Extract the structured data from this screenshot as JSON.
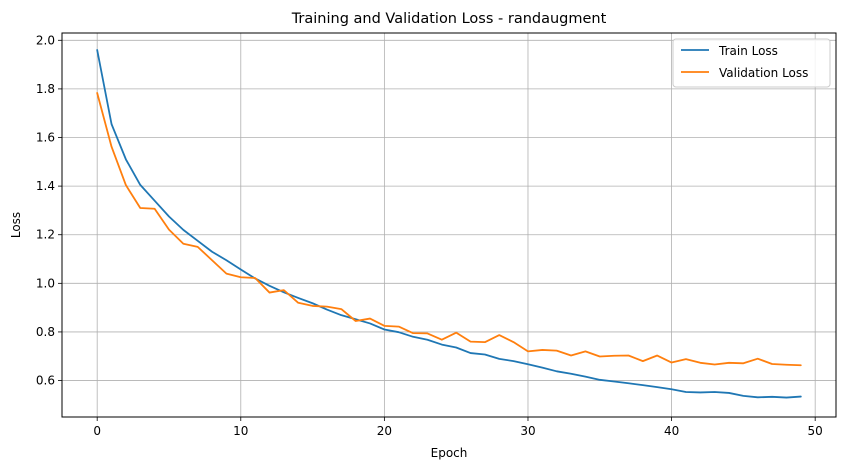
{
  "chart_data": {
    "type": "line",
    "title": "Training and Validation Loss - randaugment",
    "xlabel": "Epoch",
    "ylabel": "Loss",
    "xlim": [
      -2.45,
      51.45
    ],
    "ylim": [
      0.45,
      2.03
    ],
    "xticks": [
      0,
      10,
      20,
      30,
      40,
      50
    ],
    "yticks": [
      0.6,
      0.8,
      1.0,
      1.2,
      1.4,
      1.6,
      1.8,
      2.0
    ],
    "xtick_labels": [
      "0",
      "10",
      "20",
      "30",
      "40",
      "50"
    ],
    "ytick_labels": [
      "0.6",
      "0.8",
      "1.0",
      "1.2",
      "1.4",
      "1.6",
      "1.8",
      "2.0"
    ],
    "grid": true,
    "legend_position": "top-right",
    "x": [
      0,
      1,
      2,
      3,
      4,
      5,
      6,
      7,
      8,
      9,
      10,
      11,
      12,
      13,
      14,
      15,
      16,
      17,
      18,
      19,
      20,
      21,
      22,
      23,
      24,
      25,
      26,
      27,
      28,
      29,
      30,
      31,
      32,
      33,
      34,
      35,
      36,
      37,
      38,
      39,
      40,
      41,
      42,
      43,
      44,
      45,
      46,
      47,
      48,
      49
    ],
    "series": [
      {
        "name": "Train Loss",
        "color": "#1f77b4",
        "values": [
          1.96,
          1.655,
          1.51,
          1.405,
          1.34,
          1.275,
          1.22,
          1.175,
          1.13,
          1.095,
          1.057,
          1.02,
          0.99,
          0.963,
          0.94,
          0.918,
          0.892,
          0.869,
          0.852,
          0.835,
          0.81,
          0.799,
          0.78,
          0.768,
          0.748,
          0.736,
          0.713,
          0.707,
          0.689,
          0.68,
          0.667,
          0.653,
          0.638,
          0.628,
          0.616,
          0.603,
          0.596,
          0.589,
          0.581,
          0.573,
          0.564,
          0.553,
          0.551,
          0.553,
          0.549,
          0.537,
          0.531,
          0.533,
          0.53,
          0.534
        ]
      },
      {
        "name": "Validation Loss",
        "color": "#ff7f0e",
        "values": [
          1.783,
          1.562,
          1.404,
          1.31,
          1.307,
          1.221,
          1.163,
          1.15,
          1.095,
          1.04,
          1.025,
          1.022,
          0.962,
          0.972,
          0.92,
          0.907,
          0.904,
          0.894,
          0.845,
          0.855,
          0.825,
          0.822,
          0.795,
          0.794,
          0.768,
          0.797,
          0.76,
          0.758,
          0.787,
          0.758,
          0.72,
          0.726,
          0.723,
          0.703,
          0.72,
          0.699,
          0.702,
          0.703,
          0.68,
          0.703,
          0.674,
          0.688,
          0.673,
          0.666,
          0.673,
          0.671,
          0.69,
          0.668,
          0.665,
          0.663
        ]
      }
    ]
  }
}
